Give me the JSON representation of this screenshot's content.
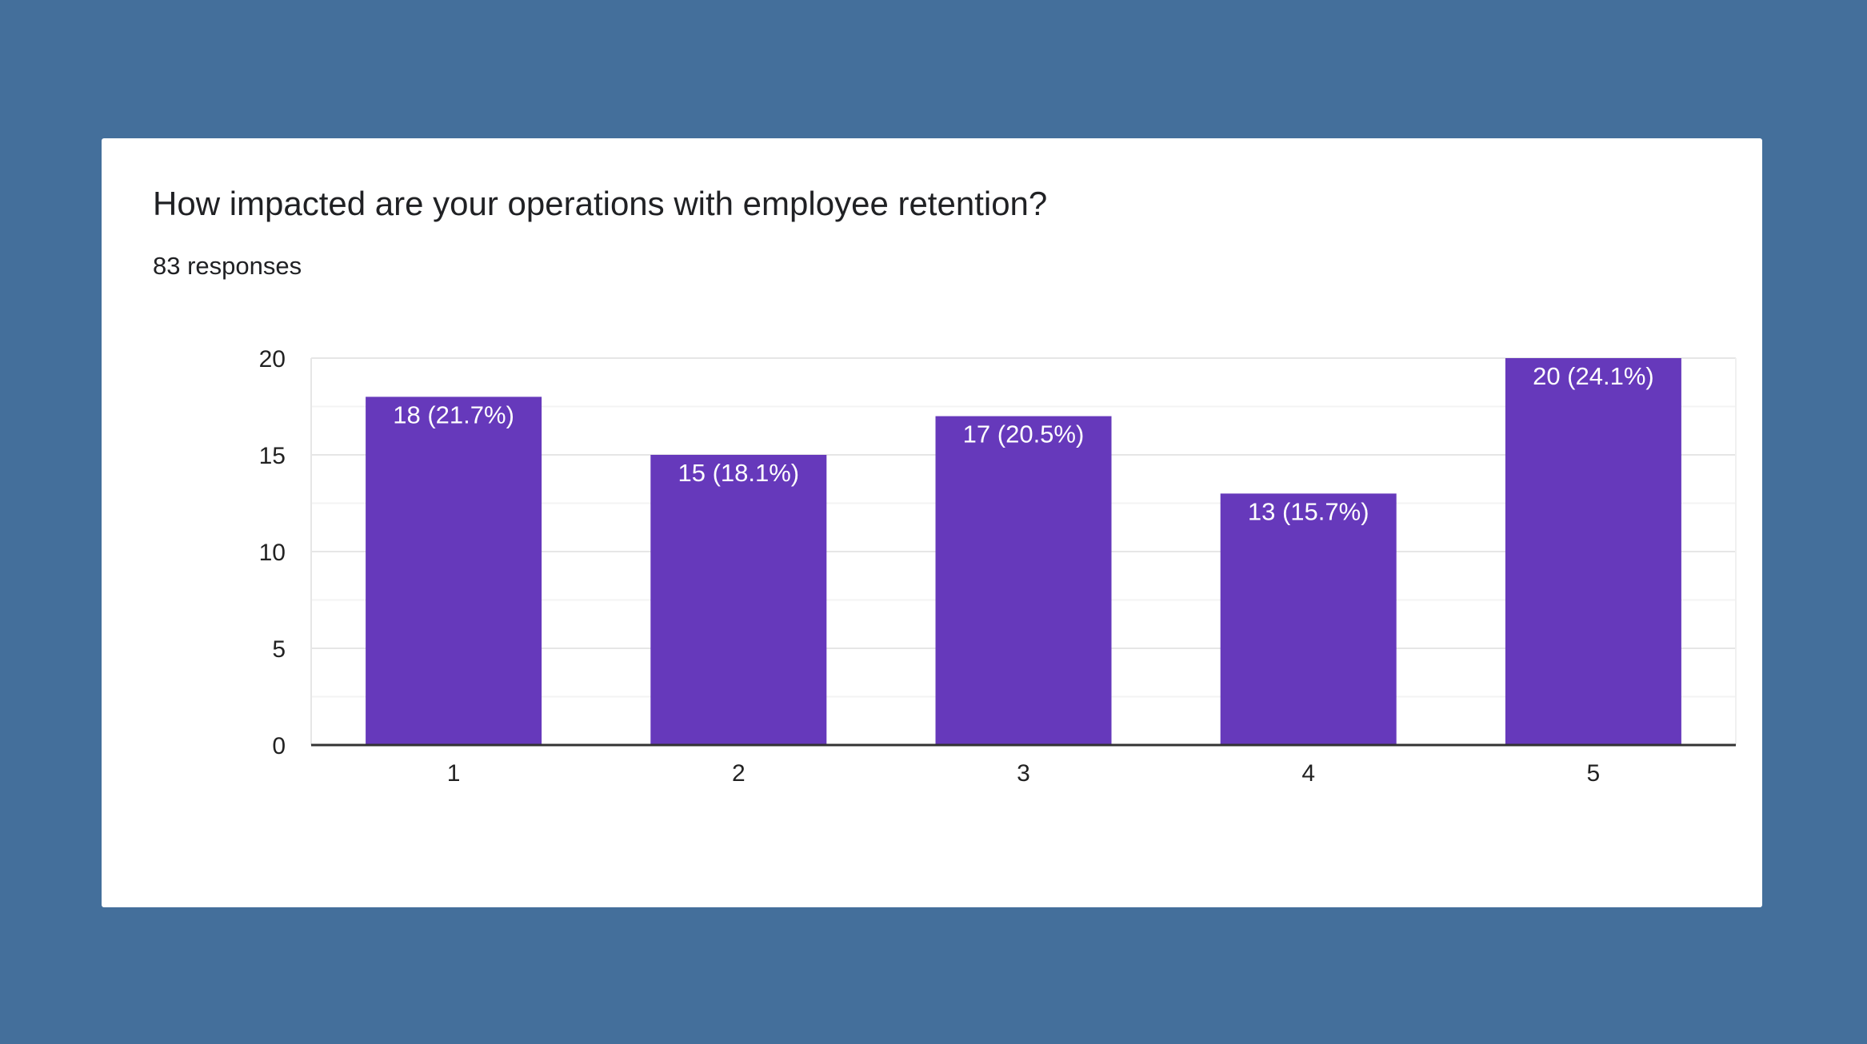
{
  "card": {
    "title": "How impacted are your operations with employee retention?",
    "subtitle": "83 responses"
  },
  "colors": {
    "background": "#446f9b",
    "bar": "#6639bb",
    "grid": "#e6e6e6",
    "axis": "#333333"
  },
  "chart_data": {
    "type": "bar",
    "title": "How impacted are your operations with employee retention?",
    "subtitle": "83 responses",
    "categories": [
      "1",
      "2",
      "3",
      "4",
      "5"
    ],
    "values": [
      18,
      15,
      17,
      13,
      20
    ],
    "data_labels": [
      "18 (21.7%)",
      "15 (18.1%)",
      "17 (20.5%)",
      "13 (15.7%)",
      "20 (24.1%)"
    ],
    "yticks": [
      0,
      5,
      10,
      15,
      20
    ],
    "ylim": [
      0,
      20
    ],
    "grid": true,
    "legend": "none"
  }
}
